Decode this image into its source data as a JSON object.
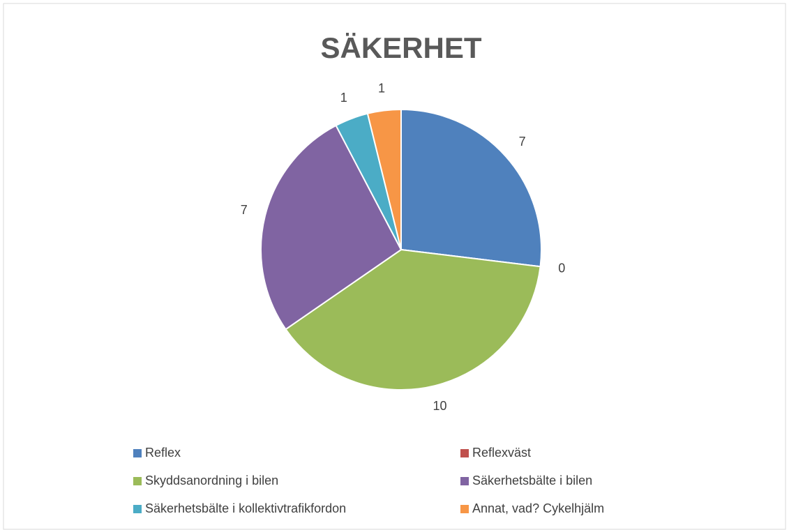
{
  "chart_data": {
    "type": "pie",
    "title": "SÄKERHET",
    "categories": [
      "Reflex",
      "Reflexväst",
      "Skyddsanordning i bilen",
      "Säkerhetsbälte i bilen",
      "Säkerhetsbälte i kollektivtrafikfordon",
      "Annat, vad? Cykelhjälm"
    ],
    "values": [
      7,
      0,
      10,
      7,
      1,
      1
    ],
    "colors": [
      "#4f81bd",
      "#c0504d",
      "#9bbb59",
      "#8064a2",
      "#4bacc6",
      "#f79646"
    ],
    "legend": "bottom"
  }
}
